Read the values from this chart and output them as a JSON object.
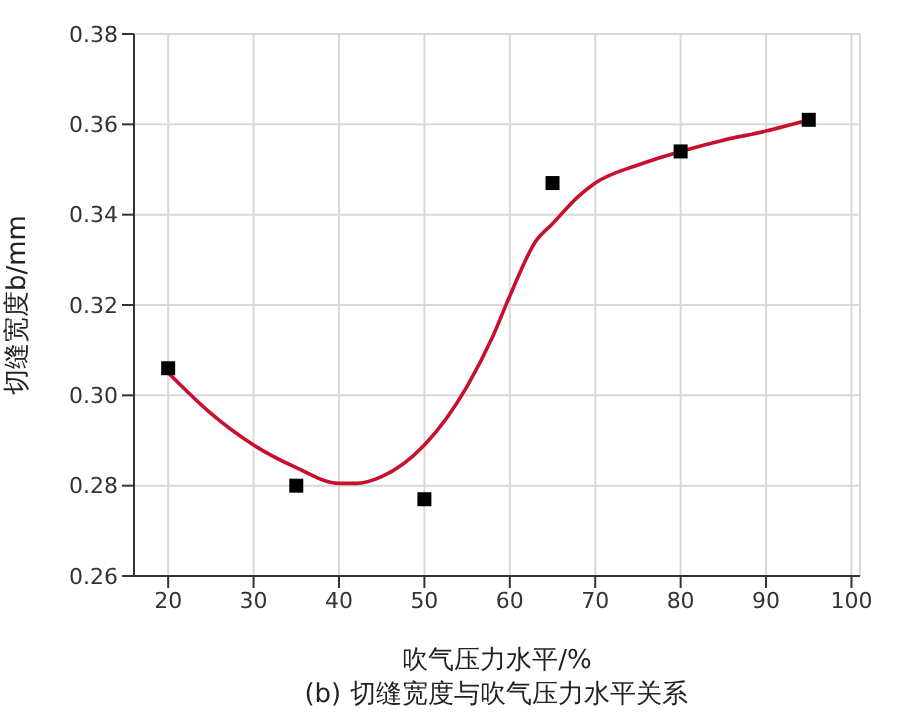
{
  "chart_data": {
    "type": "scatter",
    "title": "(b) 切缝宽度与吹气压力水平关系",
    "xlabel": "吹气压力水平/%",
    "ylabel": "切缝宽度b/mm",
    "xlim": [
      16,
      101
    ],
    "xticks": [
      20,
      30,
      40,
      50,
      60,
      70,
      80,
      90,
      100
    ],
    "ylim": [
      0.26,
      0.38
    ],
    "yticks": [
      {
        "value": 0.26,
        "label": "0.26"
      },
      {
        "value": 0.28,
        "label": "0.28"
      },
      {
        "value": 0.3,
        "label": "0.30"
      },
      {
        "value": 0.32,
        "label": "0.32"
      },
      {
        "value": 0.34,
        "label": "0.34"
      },
      {
        "value": 0.36,
        "label": "0.36"
      },
      {
        "value": 0.38,
        "label": "0.38"
      }
    ],
    "grid": true,
    "series": [
      {
        "color": "#000000",
        "marker": "square",
        "x": [
          20,
          35,
          50,
          65,
          80,
          95
        ],
        "values": [
          0.306,
          0.28,
          0.277,
          0.347,
          0.354,
          0.361
        ]
      },
      {
        "type": "line",
        "color": "#c8102e",
        "marker": "none",
        "line_style": "solid",
        "x": [
          20,
          25,
          30,
          35,
          40,
          42,
          45,
          50,
          55,
          58,
          60,
          63,
          65,
          68,
          70,
          75,
          80,
          85,
          90,
          95
        ],
        "values": [
          0.305,
          0.296,
          0.289,
          0.284,
          0.2805,
          0.2805,
          0.282,
          0.289,
          0.302,
          0.313,
          0.322,
          0.334,
          0.338,
          0.344,
          0.347,
          0.351,
          0.354,
          0.3565,
          0.3585,
          0.361
        ]
      }
    ]
  }
}
